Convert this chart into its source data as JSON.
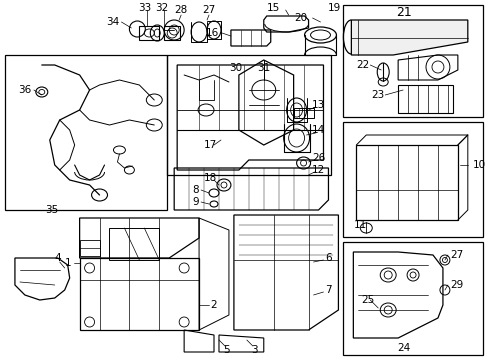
{
  "bg_color": "#ffffff",
  "line_color": "#000000",
  "gray_color": "#888888",
  "figsize": [
    4.89,
    3.6
  ],
  "dpi": 100,
  "font_size": 7.5,
  "font_size_sm": 6.5
}
